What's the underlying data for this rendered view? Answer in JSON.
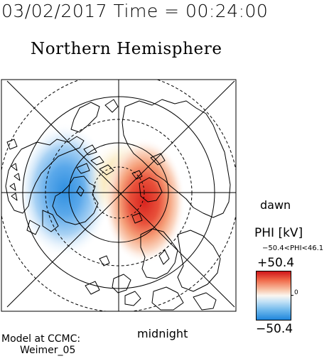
{
  "header": {
    "datetime": "03/02/2017 Time = 00:24:00"
  },
  "map": {
    "title": "Northern Hemisphere",
    "projection": "polar",
    "field": "PHI"
  },
  "labels": {
    "dawn": "dawn",
    "midnight": "midnight"
  },
  "colorbar": {
    "label": "PHI [kV]",
    "range_text": "−50.4<PHI<46.1",
    "max_label": "+50.4",
    "min_label": "−50.4",
    "zero_label": "0",
    "colors": {
      "max": "#d0161a",
      "mid": "#fbf6f0",
      "min": "#1f86dc"
    }
  },
  "footer": {
    "line1": "Model at CCMC:",
    "line2": "Weimer_05"
  }
}
